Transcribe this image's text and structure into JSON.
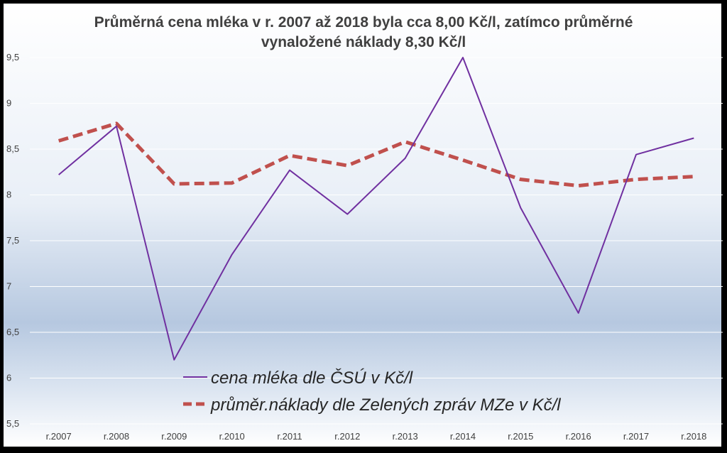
{
  "chart_data": {
    "type": "line",
    "title_lines": [
      "Průměrná cena mléka v r. 2007 až 2018 byla cca 8,00 Kč/l, zatímco průměrné",
      "vynaložené náklady 8,30 Kč/l"
    ],
    "categories": [
      "r.2007",
      "r.2008",
      "r.2009",
      "r.2010",
      "r.2011",
      "r.2012",
      "r.2013",
      "r.2014",
      "r.2015",
      "r.2016",
      "r.2017",
      "r.2018"
    ],
    "y_ticks": [
      "5,5",
      "6",
      "6,5",
      "7",
      "7,5",
      "8",
      "8,5",
      "9",
      "9,5"
    ],
    "ylim": [
      5.5,
      9.5
    ],
    "grid": true,
    "legend_position": "bottom-center-inside",
    "series": [
      {
        "name": "cena mléka dle ČSÚ v Kč/l",
        "color": "#7030A0",
        "style": "solid",
        "values": [
          8.22,
          8.75,
          6.2,
          7.35,
          8.27,
          7.79,
          8.4,
          9.5,
          7.86,
          6.71,
          8.44,
          8.62
        ]
      },
      {
        "name": "průměr.náklady dle Zelených zpráv MZe v Kč/l",
        "color": "#C0504D",
        "style": "dashed",
        "values": [
          8.59,
          8.78,
          8.12,
          8.13,
          8.43,
          8.32,
          8.58,
          8.38,
          8.17,
          8.1,
          8.17,
          8.2
        ]
      }
    ]
  }
}
